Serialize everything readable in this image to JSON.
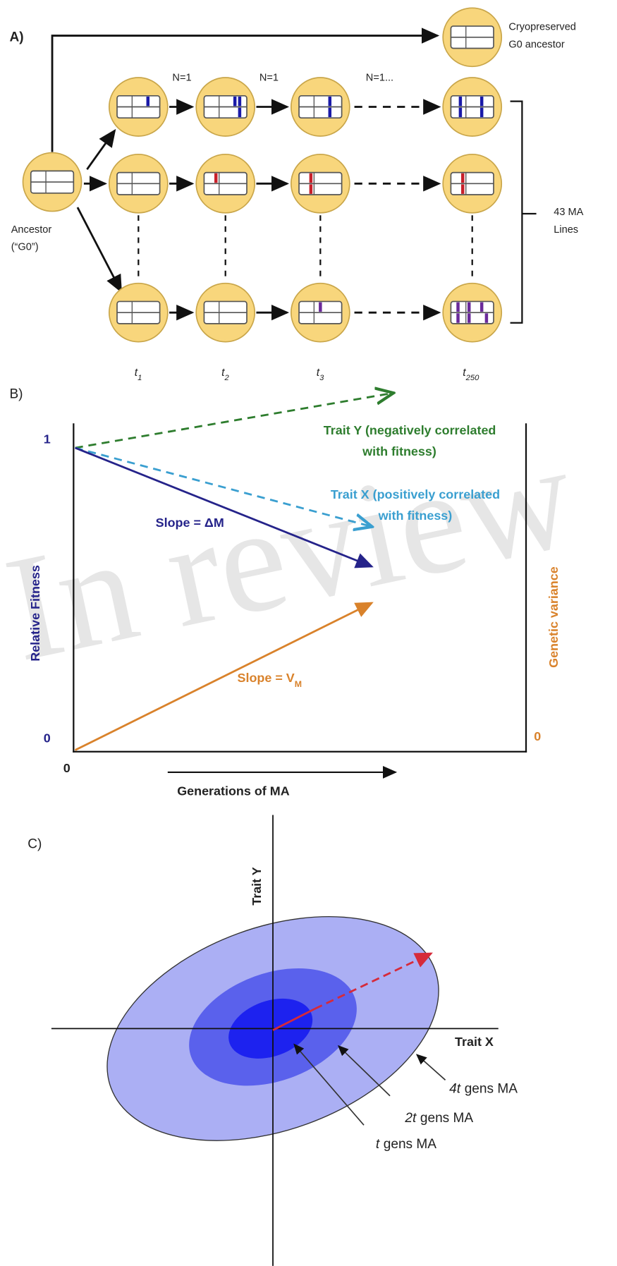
{
  "panel_a": {
    "label": "A)",
    "cryo_label": [
      "Cryopreserved",
      "G0 ancestor"
    ],
    "ancestor_label": [
      "Ancestor",
      "(“G0”)"
    ],
    "transfer_labels": [
      "N=1",
      "N=1",
      "N=1..."
    ],
    "bracket_label": [
      "43 MA",
      "Lines"
    ],
    "time_points": [
      {
        "symbol": "t",
        "subscript": "1"
      },
      {
        "symbol": "t",
        "subscript": "2"
      },
      {
        "symbol": "t",
        "subscript": "3"
      },
      {
        "symbol": "t",
        "subscript": "250"
      }
    ]
  },
  "panel_b": {
    "label": "B)",
    "watermark": "In review",
    "y_label": "Relative Fitness",
    "y2_label": "Genetic variance",
    "x_label": "Generations of MA",
    "y_top": "1",
    "y_bottom": "0",
    "x_origin": "0",
    "y2_bottom": "0",
    "trait_y_label": [
      "Trait Y (negatively correlated",
      "with fitness)"
    ],
    "trait_x_label": [
      "Trait X (positively correlated",
      "with fitness)"
    ],
    "slope_m_label": "Slope = ΔM",
    "slope_v_label": {
      "text": "Slope = V",
      "subscript": "M"
    }
  },
  "panel_c": {
    "label": "C)",
    "x_axis": "Trait X",
    "y_axis": "Trait Y",
    "ellipse_labels": [
      {
        "italic": "4t",
        "rest": "gens MA"
      },
      {
        "italic": "2t",
        "rest": "gens MA"
      },
      {
        "italic": "t",
        "rest": "gens MA"
      }
    ]
  }
}
